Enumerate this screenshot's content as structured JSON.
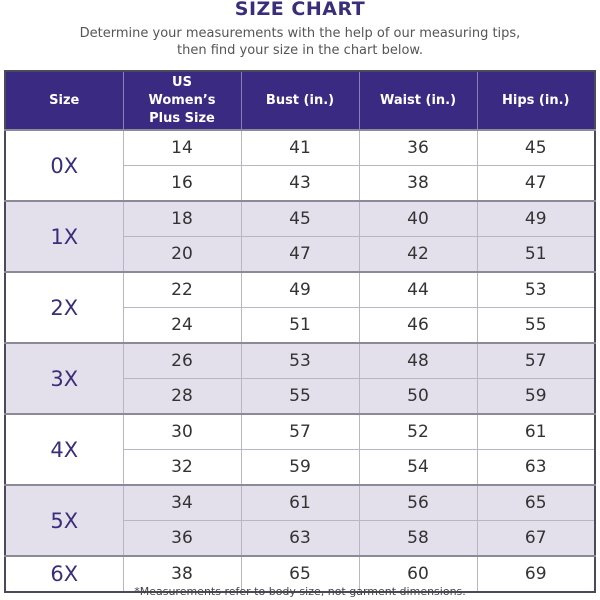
{
  "title": "SIZE CHART",
  "subtitle_line1": "Determine your measurements with the help of our measuring tips,",
  "subtitle_line2": "then find your size in the chart below.",
  "columns": [
    "Size",
    "US Women’s Plus Size",
    "Bust (in.)",
    "Waist (in.)",
    "Hips (in.)"
  ],
  "colors": {
    "header": "#3b2a82",
    "shade": "#e3e0ec",
    "size_text": "#3a2d7a"
  },
  "groups": [
    {
      "size": "0X",
      "rows": [
        [
          "14",
          "41",
          "36",
          "45"
        ],
        [
          "16",
          "43",
          "38",
          "47"
        ]
      ]
    },
    {
      "size": "1X",
      "rows": [
        [
          "18",
          "45",
          "40",
          "49"
        ],
        [
          "20",
          "47",
          "42",
          "51"
        ]
      ]
    },
    {
      "size": "2X",
      "rows": [
        [
          "22",
          "49",
          "44",
          "53"
        ],
        [
          "24",
          "51",
          "46",
          "55"
        ]
      ]
    },
    {
      "size": "3X",
      "rows": [
        [
          "26",
          "53",
          "48",
          "57"
        ],
        [
          "28",
          "55",
          "50",
          "59"
        ]
      ]
    },
    {
      "size": "4X",
      "rows": [
        [
          "30",
          "57",
          "52",
          "61"
        ],
        [
          "32",
          "59",
          "54",
          "63"
        ]
      ]
    },
    {
      "size": "5X",
      "rows": [
        [
          "34",
          "61",
          "56",
          "65"
        ],
        [
          "36",
          "63",
          "58",
          "67"
        ]
      ]
    },
    {
      "size": "6X",
      "rows": [
        [
          "38",
          "65",
          "60",
          "69"
        ]
      ]
    }
  ],
  "footnote": "*Measurements refer to body size, not garment dimensions."
}
